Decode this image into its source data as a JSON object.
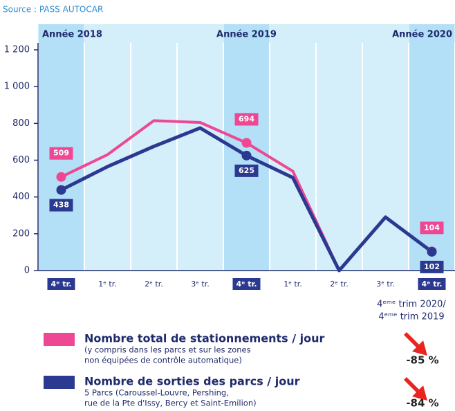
{
  "chart_data": {
    "type": "line",
    "source": "Source : PASS AUTOCAR",
    "categories": [
      "4ᵉ tr.",
      "1ᵉ tr.",
      "2ᵉ tr.",
      "3ᵉ tr.",
      "4ᵉ tr.",
      "1ᵉ tr.",
      "2ᵉ tr.",
      "3ᵉ tr.",
      "4ᵉ tr."
    ],
    "highlight": [
      0,
      4,
      8
    ],
    "periods": [
      "Année 2018",
      "Année 2019",
      "Année 2020"
    ],
    "ylim": [
      0,
      1200
    ],
    "yticks": [
      0,
      200,
      400,
      600,
      800,
      {
        "value": 1000,
        "label": "1 000"
      },
      {
        "value": 1200,
        "label": "1 200"
      }
    ],
    "series": [
      {
        "name": "Nombre total de stationnements / jour",
        "description": [
          "(y compris dans les parcs et sur les zones",
          "non équipées de contrôle automatique)"
        ],
        "color": "#ee4895",
        "values": [
          509,
          630,
          815,
          805,
          694,
          540,
          0,
          290,
          104
        ],
        "change": -85,
        "change_label": "-85 %"
      },
      {
        "name": "Nombre de sorties des parcs / jour",
        "description": [
          "5 Parcs (Caroussel-Louvre, Pershing,",
          "rue de la Pte d'Issy, Bercy et Saint-Emilion)"
        ],
        "color": "#2b3990",
        "values": [
          438,
          565,
          675,
          775,
          625,
          505,
          0,
          290,
          102
        ],
        "change": -84,
        "change_label": "-84 %"
      }
    ],
    "comparison": [
      "4ᵉᵐᵉ trim 2020/",
      "4ᵉᵐᵉ trim 2019"
    ]
  }
}
